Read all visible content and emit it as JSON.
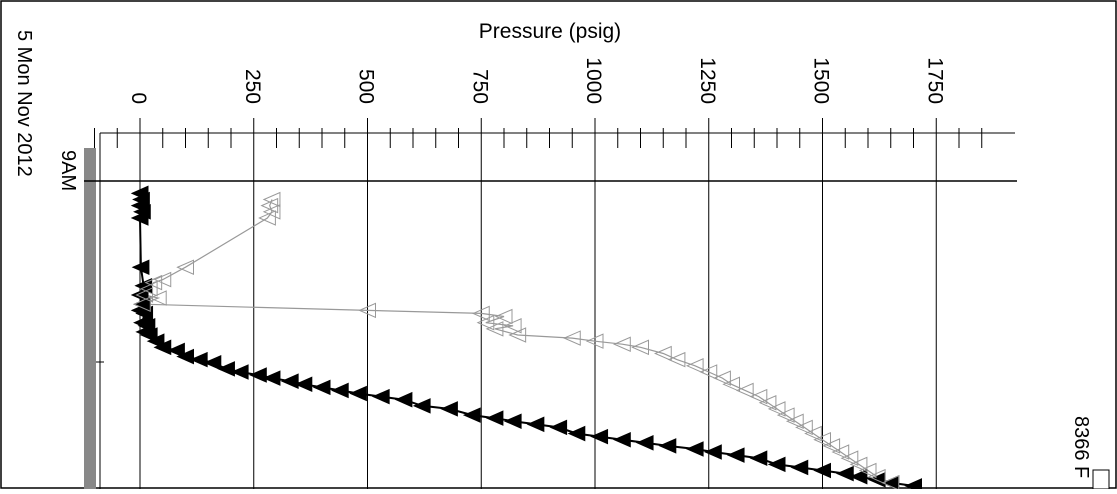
{
  "chart_data": {
    "type": "scatter",
    "title": "",
    "xlabel": "Pressure (psig)",
    "ylabel": "",
    "x_ticks": [
      0,
      250,
      500,
      750,
      1000,
      1250,
      1500,
      1750
    ],
    "x_tick_labels": [
      "0",
      "250",
      "500",
      "750",
      "1000",
      "1250",
      "1500",
      "1750"
    ],
    "xlim": [
      -100,
      1850
    ],
    "time_label_lines": [
      "9AM",
      "5 Mon Nov 2012"
    ],
    "legend": {
      "placement": "bottom-right",
      "entries": [
        {
          "label": "8366 F"
        }
      ]
    },
    "grid": true,
    "series": [
      {
        "name": "",
        "marker": "filled-triangle",
        "color": "#000000",
        "points": [
          [
            0,
            0.04
          ],
          [
            3,
            0.06
          ],
          [
            0,
            0.08
          ],
          [
            5,
            0.1
          ],
          [
            0,
            0.12
          ],
          [
            2,
            0.28
          ],
          [
            8,
            0.34
          ],
          [
            0,
            0.37
          ],
          [
            5,
            0.4
          ],
          [
            0,
            0.42
          ],
          [
            10,
            0.43
          ],
          [
            5,
            0.46
          ],
          [
            15,
            0.47
          ],
          [
            10,
            0.49
          ],
          [
            20,
            0.5
          ],
          [
            35,
            0.52
          ],
          [
            50,
            0.54
          ],
          [
            80,
            0.55
          ],
          [
            100,
            0.57
          ],
          [
            130,
            0.58
          ],
          [
            160,
            0.59
          ],
          [
            190,
            0.61
          ],
          [
            220,
            0.62
          ],
          [
            260,
            0.63
          ],
          [
            290,
            0.64
          ],
          [
            330,
            0.65
          ],
          [
            360,
            0.66
          ],
          [
            400,
            0.67
          ],
          [
            440,
            0.68
          ],
          [
            480,
            0.69
          ],
          [
            530,
            0.7
          ],
          [
            580,
            0.71
          ],
          [
            620,
            0.73
          ],
          [
            680,
            0.74
          ],
          [
            730,
            0.76
          ],
          [
            780,
            0.77
          ],
          [
            820,
            0.78
          ],
          [
            870,
            0.79
          ],
          [
            920,
            0.8
          ],
          [
            960,
            0.82
          ],
          [
            1010,
            0.83
          ],
          [
            1060,
            0.84
          ],
          [
            1110,
            0.85
          ],
          [
            1160,
            0.86
          ],
          [
            1220,
            0.87
          ],
          [
            1260,
            0.88
          ],
          [
            1310,
            0.89
          ],
          [
            1360,
            0.9
          ],
          [
            1400,
            0.92
          ],
          [
            1450,
            0.93
          ],
          [
            1500,
            0.94
          ],
          [
            1550,
            0.95
          ],
          [
            1580,
            0.96
          ],
          [
            1620,
            0.97
          ],
          [
            1650,
            0.98
          ],
          [
            1700,
            0.99
          ]
        ]
      },
      {
        "name": "",
        "marker": "open-triangle",
        "color": "#999999",
        "points": [
          [
            290,
            0.06
          ],
          [
            285,
            0.08
          ],
          [
            290,
            0.1
          ],
          [
            280,
            0.12
          ],
          [
            100,
            0.28
          ],
          [
            50,
            0.32
          ],
          [
            30,
            0.33
          ],
          [
            20,
            0.35
          ],
          [
            10,
            0.37
          ],
          [
            40,
            0.38
          ],
          [
            5,
            0.4
          ],
          [
            500,
            0.42
          ],
          [
            750,
            0.43
          ],
          [
            800,
            0.44
          ],
          [
            760,
            0.46
          ],
          [
            820,
            0.47
          ],
          [
            780,
            0.48
          ],
          [
            830,
            0.5
          ],
          [
            950,
            0.51
          ],
          [
            1000,
            0.52
          ],
          [
            1060,
            0.53
          ],
          [
            1100,
            0.54
          ],
          [
            1150,
            0.56
          ],
          [
            1180,
            0.58
          ],
          [
            1220,
            0.6
          ],
          [
            1250,
            0.62
          ],
          [
            1280,
            0.64
          ],
          [
            1300,
            0.66
          ],
          [
            1330,
            0.68
          ],
          [
            1360,
            0.7
          ],
          [
            1380,
            0.72
          ],
          [
            1400,
            0.74
          ],
          [
            1420,
            0.76
          ],
          [
            1440,
            0.78
          ],
          [
            1460,
            0.8
          ],
          [
            1480,
            0.82
          ],
          [
            1500,
            0.84
          ],
          [
            1520,
            0.86
          ],
          [
            1540,
            0.88
          ],
          [
            1560,
            0.9
          ],
          [
            1580,
            0.92
          ],
          [
            1600,
            0.94
          ],
          [
            1620,
            0.96
          ],
          [
            1650,
            0.98
          ]
        ]
      }
    ]
  }
}
